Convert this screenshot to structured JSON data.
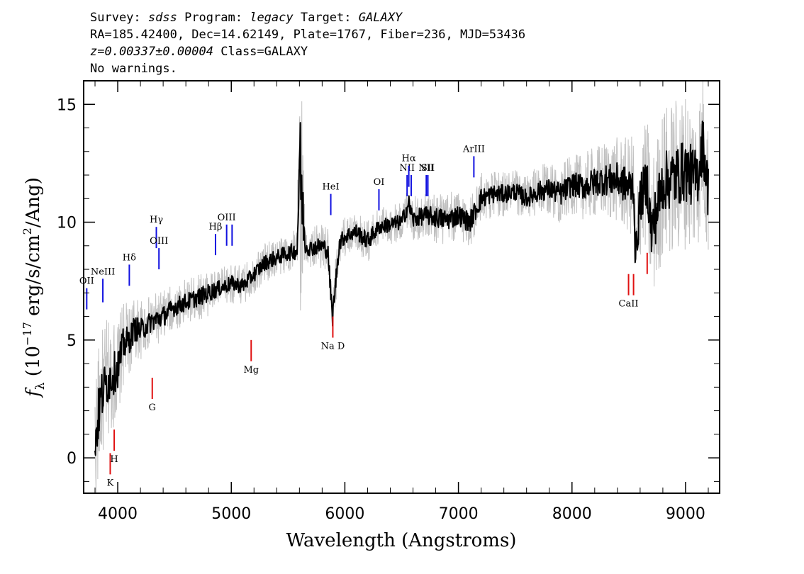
{
  "header": {
    "line1": {
      "survey_key": "Survey: ",
      "survey": "sdss",
      "program_key": " Program: ",
      "program": "legacy",
      "target_key": " Target: ",
      "target": "GALAXY"
    },
    "line2": "RA=185.42400, Dec=14.62149, Plate=1767, Fiber=236, MJD=53436",
    "line3": {
      "redshift": "z=0.00337±0.00004",
      "class": " Class=GALAXY"
    },
    "line4": "No warnings."
  },
  "chart_data": {
    "type": "line",
    "xlabel": "Wavelength (Angstroms)",
    "ylabel_parts": {
      "symbol": "f",
      "subscript": "λ",
      "open": " (10",
      "exp": "−17",
      "unit": " erg/s/cm",
      "sq": "2",
      "close": "/Ang)"
    },
    "xlim": [
      3700,
      9300
    ],
    "ylim": [
      -1.5,
      16
    ],
    "x_ticks": [
      4000,
      5000,
      6000,
      7000,
      8000,
      9000
    ],
    "y_ticks": [
      0,
      5,
      10,
      15
    ],
    "series": [
      {
        "role": "flux",
        "color": "#000000",
        "x": [
          3800,
          3850,
          3900,
          3950,
          4000,
          4050,
          4100,
          4150,
          4200,
          4300,
          4400,
          4500,
          4600,
          4700,
          4800,
          4900,
          5000,
          5100,
          5200,
          5300,
          5400,
          5500,
          5580,
          5600,
          5650,
          5700,
          5800,
          5850,
          5890,
          5950,
          6000,
          6100,
          6200,
          6300,
          6400,
          6500,
          6563,
          6600,
          6700,
          6800,
          6900,
          7000,
          7100,
          7200,
          7300,
          7400,
          7500,
          7600,
          7700,
          7800,
          7900,
          8000,
          8100,
          8200,
          8300,
          8400,
          8500,
          8542,
          8560,
          8600,
          8662,
          8700,
          8800,
          8900,
          9000,
          9100,
          9150,
          9200
        ],
        "y": [
          0.7,
          2.5,
          3.2,
          3.5,
          3.8,
          4.8,
          5.0,
          5.5,
          5.4,
          5.8,
          6.0,
          6.4,
          6.6,
          6.8,
          7.0,
          7.2,
          7.4,
          7.3,
          7.8,
          8.3,
          8.5,
          8.7,
          8.8,
          12.7,
          9.0,
          8.9,
          9.0,
          8.8,
          5.9,
          9.1,
          9.4,
          9.6,
          9.2,
          9.8,
          9.9,
          10.0,
          10.8,
          10.1,
          10.3,
          10.2,
          10.1,
          10.3,
          10.0,
          11.0,
          11.2,
          11.2,
          11.3,
          11.0,
          11.3,
          11.4,
          11.2,
          11.6,
          11.5,
          11.7,
          11.8,
          11.8,
          11.5,
          11.6,
          8.4,
          11.0,
          11.7,
          9.5,
          11.7,
          11.9,
          12.2,
          11.8,
          13.4,
          11.3
        ]
      },
      {
        "role": "flux-error-band",
        "color": "#c0c0c0",
        "noise": [
          2.2,
          2.0,
          1.9,
          1.7,
          1.5,
          1.3,
          1.1,
          1.0,
          0.9,
          0.8,
          0.8,
          0.7,
          0.7,
          0.7,
          0.7,
          0.6,
          0.6,
          0.6,
          0.6,
          0.6,
          0.6,
          0.6,
          0.7,
          5.0,
          0.7,
          0.6,
          0.7,
          0.7,
          0.8,
          0.7,
          0.6,
          0.6,
          0.7,
          0.6,
          0.6,
          0.6,
          0.7,
          0.7,
          0.7,
          0.8,
          0.8,
          0.8,
          0.8,
          0.8,
          0.7,
          0.7,
          0.7,
          0.7,
          0.8,
          0.8,
          0.9,
          0.9,
          1.0,
          1.1,
          1.2,
          1.3,
          1.5,
          1.6,
          1.6,
          1.8,
          2.0,
          2.2,
          2.3,
          2.4,
          2.4,
          2.3,
          2.2,
          2.2
        ]
      }
    ],
    "emission_lines": [
      {
        "label": "OII",
        "x": 3727,
        "y0": 6.3,
        "y1": 7.2
      },
      {
        "label": "NeIII",
        "x": 3869,
        "y0": 6.6,
        "y1": 7.6
      },
      {
        "label": "Hδ",
        "x": 4102,
        "y0": 7.3,
        "y1": 8.2
      },
      {
        "label": "Hγ",
        "x": 4340,
        "y0": 8.9,
        "y1": 9.8
      },
      {
        "label": "OIII",
        "x": 4363,
        "y0": 8.0,
        "y1": 8.9
      },
      {
        "label": "Hβ",
        "x": 4861,
        "y0": 8.6,
        "y1": 9.5
      },
      {
        "label": "OIII",
        "x": 4959,
        "y0": 9.0,
        "y1": 9.9
      },
      {
        "label": "",
        "x": 5007,
        "y0": 9.0,
        "y1": 9.9
      },
      {
        "label": "HeI",
        "x": 5876,
        "y0": 10.3,
        "y1": 11.2
      },
      {
        "label": "OI",
        "x": 6300,
        "y0": 10.5,
        "y1": 11.4
      },
      {
        "label": "NII",
        "x": 6548,
        "y0": 11.1,
        "y1": 12.0
      },
      {
        "label": "Hα",
        "x": 6563,
        "y0": 11.5,
        "y1": 12.4
      },
      {
        "label": "",
        "x": 6584,
        "y0": 11.1,
        "y1": 12.0
      },
      {
        "label": "NII",
        "x": 6717,
        "y0": 11.1,
        "y1": 12.0
      },
      {
        "label": "SII",
        "x": 6731,
        "y0": 11.1,
        "y1": 12.0
      },
      {
        "label": "ArIII",
        "x": 7136,
        "y0": 11.9,
        "y1": 12.8
      }
    ],
    "absorption_lines": [
      {
        "label": "K",
        "x": 3934,
        "y0": -0.7,
        "y1": 0.2
      },
      {
        "label": "H",
        "x": 3969,
        "y0": 0.3,
        "y1": 1.2
      },
      {
        "label": "G",
        "x": 4304,
        "y0": 2.5,
        "y1": 3.4
      },
      {
        "label": "Mg",
        "x": 5175,
        "y0": 4.1,
        "y1": 5.0
      },
      {
        "label": "Na D",
        "x": 5894,
        "y0": 5.1,
        "y1": 6.0
      },
      {
        "label": "CaII",
        "x": 8498,
        "y0": 6.9,
        "y1": 7.8
      },
      {
        "label": "",
        "x": 8542,
        "y0": 6.9,
        "y1": 7.8
      },
      {
        "label": "",
        "x": 8662,
        "y0": 7.8,
        "y1": 8.7
      }
    ],
    "colors": {
      "emission": "#1010e0",
      "absorption": "#e01010"
    }
  }
}
